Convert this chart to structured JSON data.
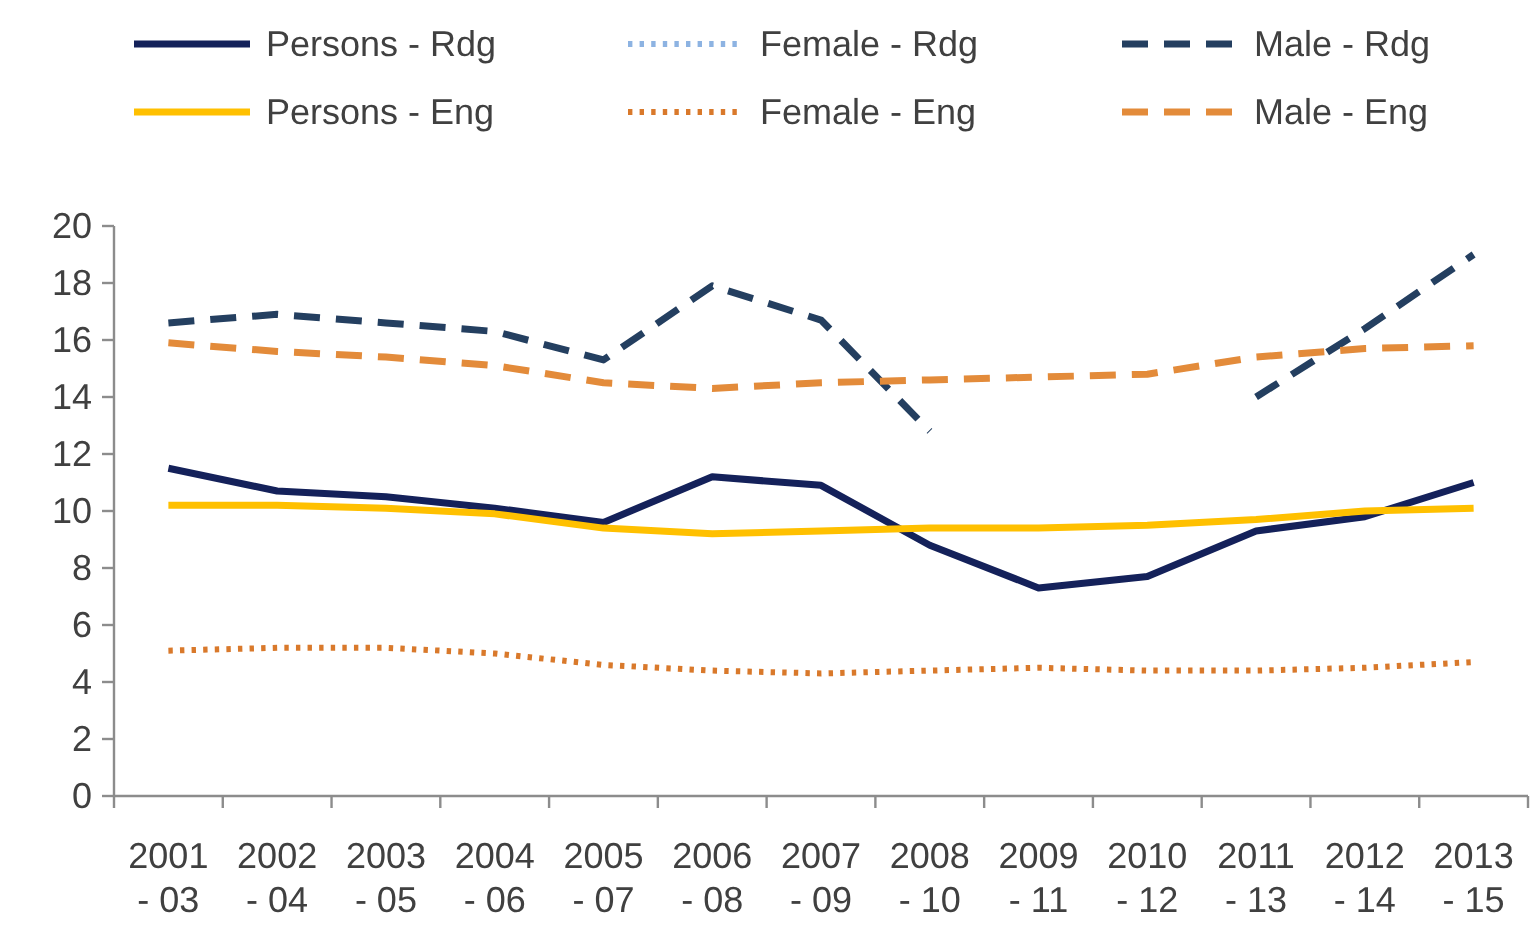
{
  "chart_data": {
    "type": "line",
    "categories": [
      "2001 - 03",
      "2002 - 04",
      "2003 - 05",
      "2004 - 06",
      "2005 - 07",
      "2006 - 08",
      "2007 - 09",
      "2008 - 10",
      "2009 - 11",
      "2010 - 12",
      "2011 - 13",
      "2012 - 14",
      "2013 - 15"
    ],
    "series": [
      {
        "name": "Persons - Rdg",
        "color": "#14215a",
        "line_style": "solid",
        "values": [
          11.5,
          10.7,
          10.5,
          10.1,
          9.6,
          11.2,
          10.9,
          8.8,
          7.3,
          7.7,
          9.3,
          9.8,
          11.0
        ]
      },
      {
        "name": "Female - Rdg",
        "color": "#8db3e2",
        "line_style": "dotted",
        "values": [
          null,
          null,
          null,
          null,
          null,
          null,
          null,
          null,
          null,
          null,
          null,
          null,
          null
        ]
      },
      {
        "name": "Male - Rdg",
        "color": "#243f60",
        "line_style": "dashed",
        "values": [
          16.6,
          16.9,
          16.6,
          16.3,
          15.3,
          17.9,
          16.7,
          12.8,
          null,
          null,
          14.0,
          16.4,
          19.0
        ]
      },
      {
        "name": "Persons - Eng",
        "color": "#ffc000",
        "line_style": "solid",
        "values": [
          10.2,
          10.2,
          10.1,
          9.9,
          9.4,
          9.2,
          9.3,
          9.4,
          9.4,
          9.5,
          9.7,
          10.0,
          10.1
        ]
      },
      {
        "name": "Female - Eng",
        "color": "#d9792b",
        "line_style": "dotted",
        "values": [
          5.1,
          5.2,
          5.2,
          5.0,
          4.6,
          4.4,
          4.3,
          4.4,
          4.5,
          4.4,
          4.4,
          4.5,
          4.7
        ]
      },
      {
        "name": "Male - Eng",
        "color": "#e38b3a",
        "line_style": "dashed",
        "values": [
          15.9,
          15.6,
          15.4,
          15.1,
          14.5,
          14.3,
          14.5,
          14.6,
          14.7,
          14.8,
          15.4,
          15.7,
          15.8
        ]
      }
    ],
    "ylim": [
      0,
      20
    ],
    "yticks": [
      0,
      2,
      4,
      6,
      8,
      10,
      12,
      14,
      16,
      18,
      20
    ],
    "legend": "top"
  }
}
